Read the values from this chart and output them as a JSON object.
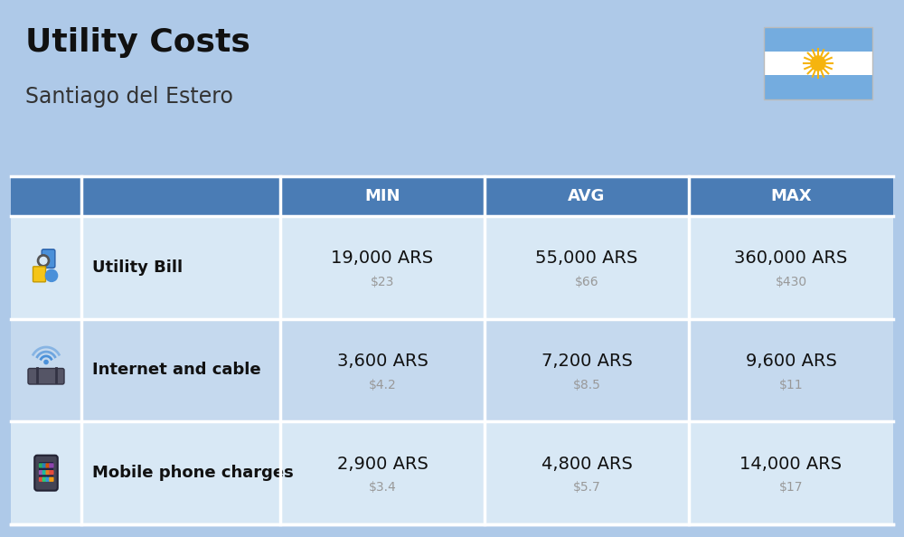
{
  "title": "Utility Costs",
  "subtitle": "Santiago del Estero",
  "background_color": "#aec9e8",
  "header_bg_color": "#4a7cb5",
  "header_text_color": "#ffffff",
  "row_bg_color_1": "#d8e8f5",
  "row_bg_color_2": "#c5d9ee",
  "table_border_color": "#ffffff",
  "rows": [
    {
      "label": "Utility Bill",
      "min_ars": "19,000 ARS",
      "min_usd": "$23",
      "avg_ars": "55,000 ARS",
      "avg_usd": "$66",
      "max_ars": "360,000 ARS",
      "max_usd": "$430"
    },
    {
      "label": "Internet and cable",
      "min_ars": "3,600 ARS",
      "min_usd": "$4.2",
      "avg_ars": "7,200 ARS",
      "avg_usd": "$8.5",
      "max_ars": "9,600 ARS",
      "max_usd": "$11"
    },
    {
      "label": "Mobile phone charges",
      "min_ars": "2,900 ARS",
      "min_usd": "$3.4",
      "avg_ars": "4,800 ARS",
      "avg_usd": "$5.7",
      "max_ars": "14,000 ARS",
      "max_usd": "$17"
    }
  ],
  "title_fontsize": 26,
  "subtitle_fontsize": 17,
  "header_fontsize": 13,
  "cell_ars_fontsize": 14,
  "cell_usd_fontsize": 10,
  "label_fontsize": 13,
  "usd_color": "#999999",
  "label_color": "#111111",
  "ars_color": "#111111",
  "flag_stripe1": "#74acdf",
  "flag_white": "#ffffff",
  "flag_sun": "#F6B40E",
  "sun_face": "#85340A"
}
